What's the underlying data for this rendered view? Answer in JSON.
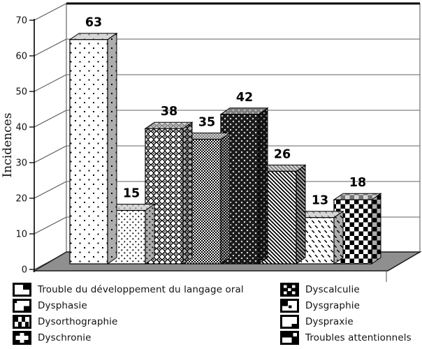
{
  "chart_data": {
    "type": "bar",
    "style": "3d",
    "title": "",
    "xlabel": "",
    "ylabel": "Incidences",
    "ylim": [
      0,
      70
    ],
    "yticks": [
      0,
      10,
      20,
      30,
      40,
      50,
      60,
      70
    ],
    "grid": true,
    "legend_position": "bottom-two-columns",
    "categories": [
      "Trouble du développement du langage oral",
      "Dysphasie",
      "Dysorthographie",
      "Dyschronie",
      "Dyscalculie",
      "Dysgraphie",
      "Dyspraxie",
      "Troubles attentionnels"
    ],
    "values": [
      63,
      15,
      38,
      35,
      42,
      26,
      13,
      18
    ],
    "bar_labels": [
      "63",
      "15",
      "38",
      "35",
      "42",
      "26",
      "13",
      "18"
    ],
    "patterns": [
      "sparse-dots",
      "dense-dots",
      "diamond-lattice",
      "fine-checker",
      "dark-diamond-dots",
      "diagonal-stripes",
      "dash-rows",
      "checkerboard"
    ],
    "colors": {
      "background": "#ffffff",
      "floor": "#8f8f8f",
      "pattern_ink": "#000000",
      "bar_background": "#ffffff",
      "outline": "#000000",
      "gridline": "#808080"
    }
  }
}
